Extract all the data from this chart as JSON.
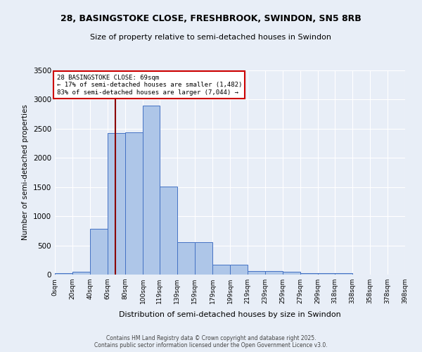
{
  "title_line1": "28, BASINGSTOKE CLOSE, FRESHBROOK, SWINDON, SN5 8RB",
  "title_line2": "Size of property relative to semi-detached houses in Swindon",
  "xlabel": "Distribution of semi-detached houses by size in Swindon",
  "ylabel": "Number of semi-detached properties",
  "bin_labels": [
    "0sqm",
    "20sqm",
    "40sqm",
    "60sqm",
    "80sqm",
    "100sqm",
    "119sqm",
    "139sqm",
    "159sqm",
    "179sqm",
    "199sqm",
    "219sqm",
    "239sqm",
    "259sqm",
    "279sqm",
    "299sqm",
    "318sqm",
    "338sqm",
    "358sqm",
    "378sqm",
    "398sqm"
  ],
  "bin_edges": [
    0,
    20,
    40,
    60,
    80,
    100,
    119,
    139,
    159,
    179,
    199,
    219,
    239,
    259,
    279,
    299,
    318,
    338,
    358,
    378,
    398
  ],
  "bar_heights": [
    20,
    50,
    780,
    2430,
    2440,
    2900,
    1510,
    550,
    555,
    175,
    170,
    65,
    60,
    45,
    20,
    20,
    20,
    0,
    0,
    0
  ],
  "bar_color": "#aec6e8",
  "bar_edge_color": "#4472c4",
  "property_size": 69,
  "property_line_color": "#8b0000",
  "annotation_text": "28 BASINGSTOKE CLOSE: 69sqm\n← 17% of semi-detached houses are smaller (1,482)\n83% of semi-detached houses are larger (7,044) →",
  "annotation_box_color": "#ffffff",
  "annotation_box_edge": "#cc0000",
  "ylim": [
    0,
    3500
  ],
  "yticks": [
    0,
    500,
    1000,
    1500,
    2000,
    2500,
    3000,
    3500
  ],
  "background_color": "#e8eef7",
  "grid_color": "#ffffff",
  "footer_line1": "Contains HM Land Registry data © Crown copyright and database right 2025.",
  "footer_line2": "Contains public sector information licensed under the Open Government Licence v3.0."
}
